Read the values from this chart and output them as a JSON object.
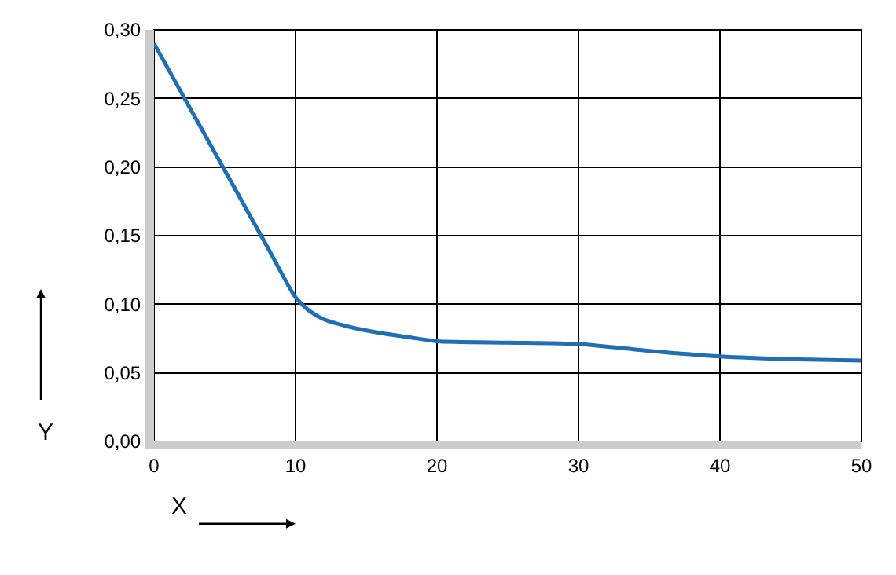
{
  "chart_data": {
    "type": "line",
    "xlabel": "X",
    "ylabel": "Y",
    "x": [
      0,
      2,
      4,
      6,
      8,
      10,
      11,
      12,
      14,
      16,
      18,
      20,
      25,
      30,
      35,
      40,
      45,
      50
    ],
    "series": [
      {
        "color": "#1f6fb5",
        "values": [
          0.29,
          0.253,
          0.216,
          0.179,
          0.142,
          0.105,
          0.095,
          0.089,
          0.083,
          0.079,
          0.076,
          0.073,
          0.072,
          0.071,
          0.066,
          0.062,
          0.06,
          0.059
        ]
      }
    ],
    "xlim": [
      0,
      50
    ],
    "xticks": [
      0,
      10,
      20,
      30,
      40,
      50
    ],
    "ylim": [
      0,
      0.3
    ],
    "yticks": [
      {
        "value": 0,
        "label": "0,00"
      },
      {
        "value": 0.05,
        "label": "0,05"
      },
      {
        "value": 0.1,
        "label": "0,10"
      },
      {
        "value": 0.15,
        "label": "0,15"
      },
      {
        "value": 0.2,
        "label": "0,20"
      },
      {
        "value": 0.25,
        "label": "0,25"
      },
      {
        "value": 0.3,
        "label": "0,30"
      }
    ],
    "grid": true,
    "marker": "none",
    "line_style": "solid",
    "legend": false
  }
}
